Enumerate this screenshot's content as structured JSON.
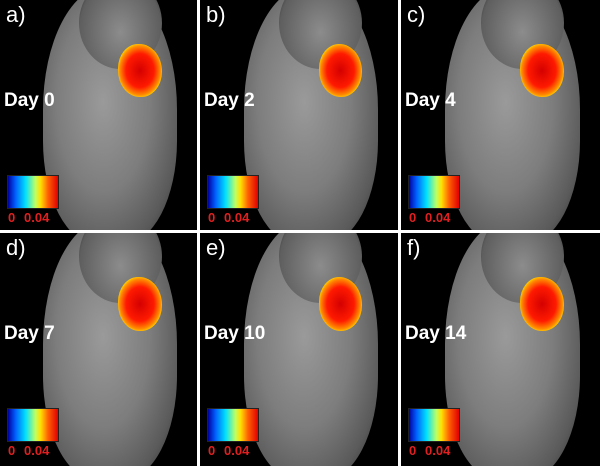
{
  "panels": [
    {
      "label": "a)",
      "day": "Day 0"
    },
    {
      "label": "b)",
      "day": "Day 2"
    },
    {
      "label": "c)",
      "day": "Day 4"
    },
    {
      "label": "d)",
      "day": "Day 7"
    },
    {
      "label": "e)",
      "day": "Day 10"
    },
    {
      "label": "f)",
      "day": "Day 14"
    }
  ],
  "colorbar": {
    "min": "0",
    "max": "0.04",
    "label_color": "#e02020",
    "colormap": "jet"
  }
}
